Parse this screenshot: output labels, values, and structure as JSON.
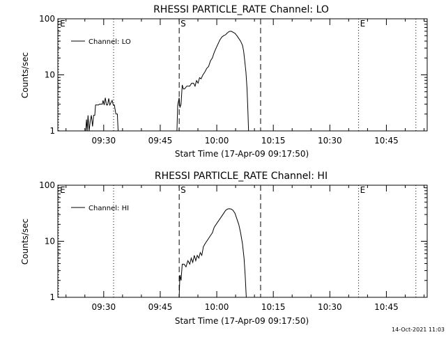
{
  "colors": {
    "background": "#ffffff",
    "foreground": "#000000"
  },
  "footer": {
    "date_stamp": "14-Oct-2021 11:03"
  },
  "chart_data": [
    {
      "type": "line",
      "title": "RHESSI PARTICLE_RATE Channel: LO",
      "xlabel": "Start Time (17-Apr-09 09:17:50)",
      "ylabel": "Counts/sec",
      "y_scale": "log",
      "ylim": [
        1,
        100
      ],
      "ytick_labels": [
        "1",
        "10",
        "100"
      ],
      "ytick_values": [
        1,
        10,
        100
      ],
      "xlim_minutes": [
        0,
        98
      ],
      "xtick_labels": [
        "09:30",
        "09:45",
        "10:00",
        "10:15",
        "10:30",
        "10:45"
      ],
      "xtick_minutes": [
        12.17,
        27.17,
        42.17,
        57.17,
        72.17,
        87.17
      ],
      "legend": {
        "label": "Channel: LO",
        "position": "top-left"
      },
      "markers": [
        {
          "label": "E",
          "minute": 0.2,
          "style": "dotted"
        },
        {
          "label": "",
          "minute": 14.8,
          "style": "dotted"
        },
        {
          "label": "S",
          "minute": 32.2,
          "style": "dashed"
        },
        {
          "label": "",
          "minute": 53.8,
          "style": "dashed"
        },
        {
          "label": "E",
          "minute": 79.8,
          "style": "dotted"
        },
        {
          "label": "",
          "minute": 95.0,
          "style": "dotted"
        }
      ],
      "series": [
        {
          "name": "Channel: LO",
          "segments": [
            [
              [
                7.4,
                1.0
              ],
              [
                7.6,
                1.6
              ],
              [
                7.8,
                1.0
              ],
              [
                8.0,
                1.9
              ],
              [
                8.3,
                1.0
              ],
              [
                8.6,
                1.5
              ],
              [
                8.9,
                1.9
              ],
              [
                9.2,
                1.2
              ],
              [
                9.5,
                1.9
              ],
              [
                9.8,
                1.9
              ],
              [
                10.0,
                2.9
              ],
              [
                10.8,
                2.9
              ],
              [
                11.0,
                3.0
              ],
              [
                11.8,
                3.0
              ],
              [
                12.0,
                3.5
              ],
              [
                12.3,
                2.9
              ],
              [
                12.6,
                3.9
              ],
              [
                12.9,
                2.9
              ],
              [
                13.2,
                2.9
              ],
              [
                13.5,
                3.8
              ],
              [
                13.8,
                2.9
              ],
              [
                14.1,
                3.2
              ],
              [
                14.4,
                3.5
              ],
              [
                14.7,
                2.9
              ],
              [
                15.0,
                2.9
              ],
              [
                15.4,
                2.0
              ],
              [
                15.8,
                2.0
              ],
              [
                16.0,
                1.0
              ]
            ],
            [
              [
                31.6,
                1.0
              ],
              [
                31.8,
                2.9
              ],
              [
                32.2,
                3.9
              ],
              [
                32.4,
                2.6
              ],
              [
                32.7,
                3.0
              ],
              [
                33.0,
                6.6
              ],
              [
                33.3,
                5.6
              ],
              [
                33.6,
                5.6
              ],
              [
                34.2,
                6.3
              ],
              [
                35.0,
                6.3
              ],
              [
                35.5,
                7.1
              ],
              [
                36.0,
                7.1
              ],
              [
                36.4,
                6.3
              ],
              [
                36.8,
                7.9
              ],
              [
                37.2,
                7.1
              ],
              [
                37.6,
                8.9
              ],
              [
                38.0,
                8.5
              ],
              [
                38.5,
                10.0
              ],
              [
                39.0,
                11.2
              ],
              [
                39.5,
                13.0
              ],
              [
                40.0,
                14.1
              ],
              [
                40.5,
                17.8
              ],
              [
                41.0,
                20.0
              ],
              [
                41.5,
                25.1
              ],
              [
                42.0,
                30.0
              ],
              [
                42.5,
                35.5
              ],
              [
                43.0,
                42.2
              ],
              [
                43.5,
                47.3
              ],
              [
                44.0,
                50.0
              ],
              [
                44.5,
                52.0
              ],
              [
                45.0,
                56.2
              ],
              [
                45.5,
                59.6
              ],
              [
                46.0,
                60.0
              ],
              [
                46.5,
                57.5
              ],
              [
                47.0,
                55.0
              ],
              [
                47.5,
                50.0
              ],
              [
                48.0,
                44.7
              ],
              [
                48.5,
                39.8
              ],
              [
                49.0,
                33.5
              ],
              [
                49.3,
                26.6
              ],
              [
                49.6,
                17.8
              ],
              [
                49.9,
                11.2
              ],
              [
                50.2,
                5.6
              ],
              [
                50.4,
                2.5
              ],
              [
                50.6,
                1.0
              ]
            ]
          ]
        }
      ]
    },
    {
      "type": "line",
      "title": "RHESSI PARTICLE_RATE Channel: HI",
      "xlabel": "Start Time (17-Apr-09 09:17:50)",
      "ylabel": "Counts/sec",
      "y_scale": "log",
      "ylim": [
        1,
        100
      ],
      "ytick_labels": [
        "1",
        "10",
        "100"
      ],
      "ytick_values": [
        1,
        10,
        100
      ],
      "xlim_minutes": [
        0,
        98
      ],
      "xtick_labels": [
        "09:30",
        "09:45",
        "10:00",
        "10:15",
        "10:30",
        "10:45"
      ],
      "xtick_minutes": [
        12.17,
        27.17,
        42.17,
        57.17,
        72.17,
        87.17
      ],
      "legend": {
        "label": "Channel: HI",
        "position": "top-left"
      },
      "markers": [
        {
          "label": "E",
          "minute": 0.2,
          "style": "dotted"
        },
        {
          "label": "",
          "minute": 14.8,
          "style": "dotted"
        },
        {
          "label": "S",
          "minute": 32.2,
          "style": "dashed"
        },
        {
          "label": "",
          "minute": 53.8,
          "style": "dashed"
        },
        {
          "label": "E",
          "minute": 79.8,
          "style": "dotted"
        },
        {
          "label": "",
          "minute": 95.0,
          "style": "dotted"
        }
      ],
      "series": [
        {
          "name": "Channel: HI",
          "segments": [
            [
              [
                32.2,
                1.0
              ],
              [
                32.4,
                2.5
              ],
              [
                32.7,
                2.0
              ],
              [
                33.0,
                3.9
              ],
              [
                33.5,
                3.9
              ],
              [
                34.0,
                3.5
              ],
              [
                34.5,
                4.5
              ],
              [
                35.0,
                3.9
              ],
              [
                35.4,
                5.0
              ],
              [
                35.8,
                4.2
              ],
              [
                36.2,
                5.6
              ],
              [
                36.6,
                4.5
              ],
              [
                37.0,
                5.6
              ],
              [
                37.4,
                5.0
              ],
              [
                37.8,
                6.3
              ],
              [
                38.2,
                5.6
              ],
              [
                38.6,
                7.9
              ],
              [
                39.0,
                8.9
              ],
              [
                39.5,
                10.0
              ],
              [
                40.0,
                11.2
              ],
              [
                40.5,
                12.6
              ],
              [
                41.0,
                14.1
              ],
              [
                41.5,
                17.8
              ],
              [
                42.0,
                20.0
              ],
              [
                42.5,
                22.4
              ],
              [
                43.0,
                25.1
              ],
              [
                43.5,
                28.2
              ],
              [
                44.0,
                31.6
              ],
              [
                44.5,
                35.5
              ],
              [
                45.0,
                37.6
              ],
              [
                45.5,
                38.0
              ],
              [
                46.0,
                37.6
              ],
              [
                46.5,
                35.5
              ],
              [
                47.0,
                31.6
              ],
              [
                47.5,
                25.1
              ],
              [
                48.0,
                20.0
              ],
              [
                48.5,
                14.1
              ],
              [
                49.0,
                8.9
              ],
              [
                49.4,
                5.0
              ],
              [
                49.7,
                2.5
              ],
              [
                50.0,
                1.0
              ]
            ]
          ]
        }
      ]
    }
  ]
}
